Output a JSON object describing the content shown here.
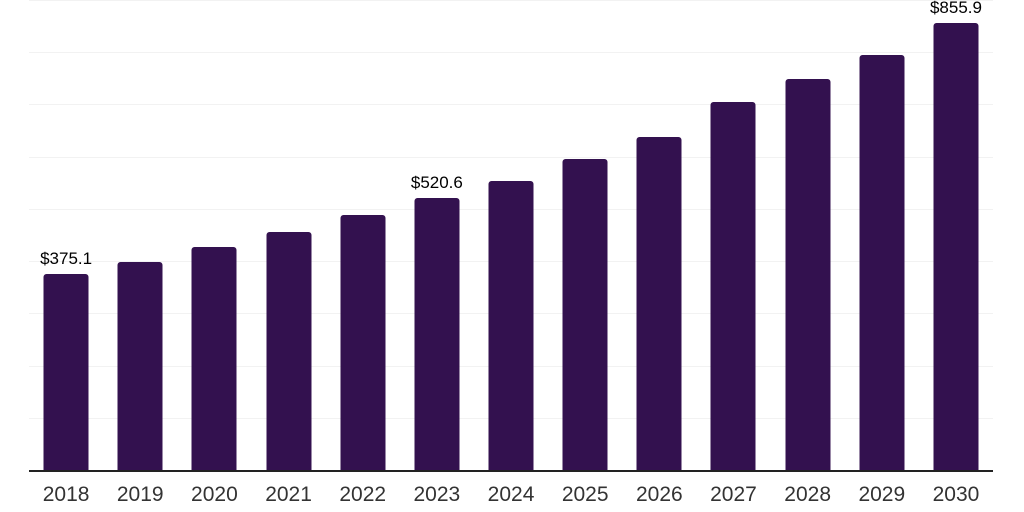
{
  "chart_data": {
    "type": "bar",
    "title": "",
    "xlabel": "",
    "ylabel": "",
    "categories": [
      "2018",
      "2019",
      "2020",
      "2021",
      "2022",
      "2023",
      "2024",
      "2025",
      "2026",
      "2027",
      "2028",
      "2029",
      "2030"
    ],
    "values": [
      375.1,
      398,
      428,
      456,
      488,
      520.6,
      554,
      595,
      638,
      705,
      749,
      795,
      855.9
    ],
    "data_labels": {
      "2018": "$375.1",
      "2023": "$520.6",
      "2030": "$855.9"
    },
    "ylim": [
      0,
      900
    ],
    "gridline_step": 100,
    "grid": "horizontal",
    "legend": "none",
    "bar_color": "#33114f",
    "grid_color": "#f2f2f2",
    "axis_color": "#222222",
    "value_label_color": "#000000",
    "tick_label_color": "#333333"
  }
}
